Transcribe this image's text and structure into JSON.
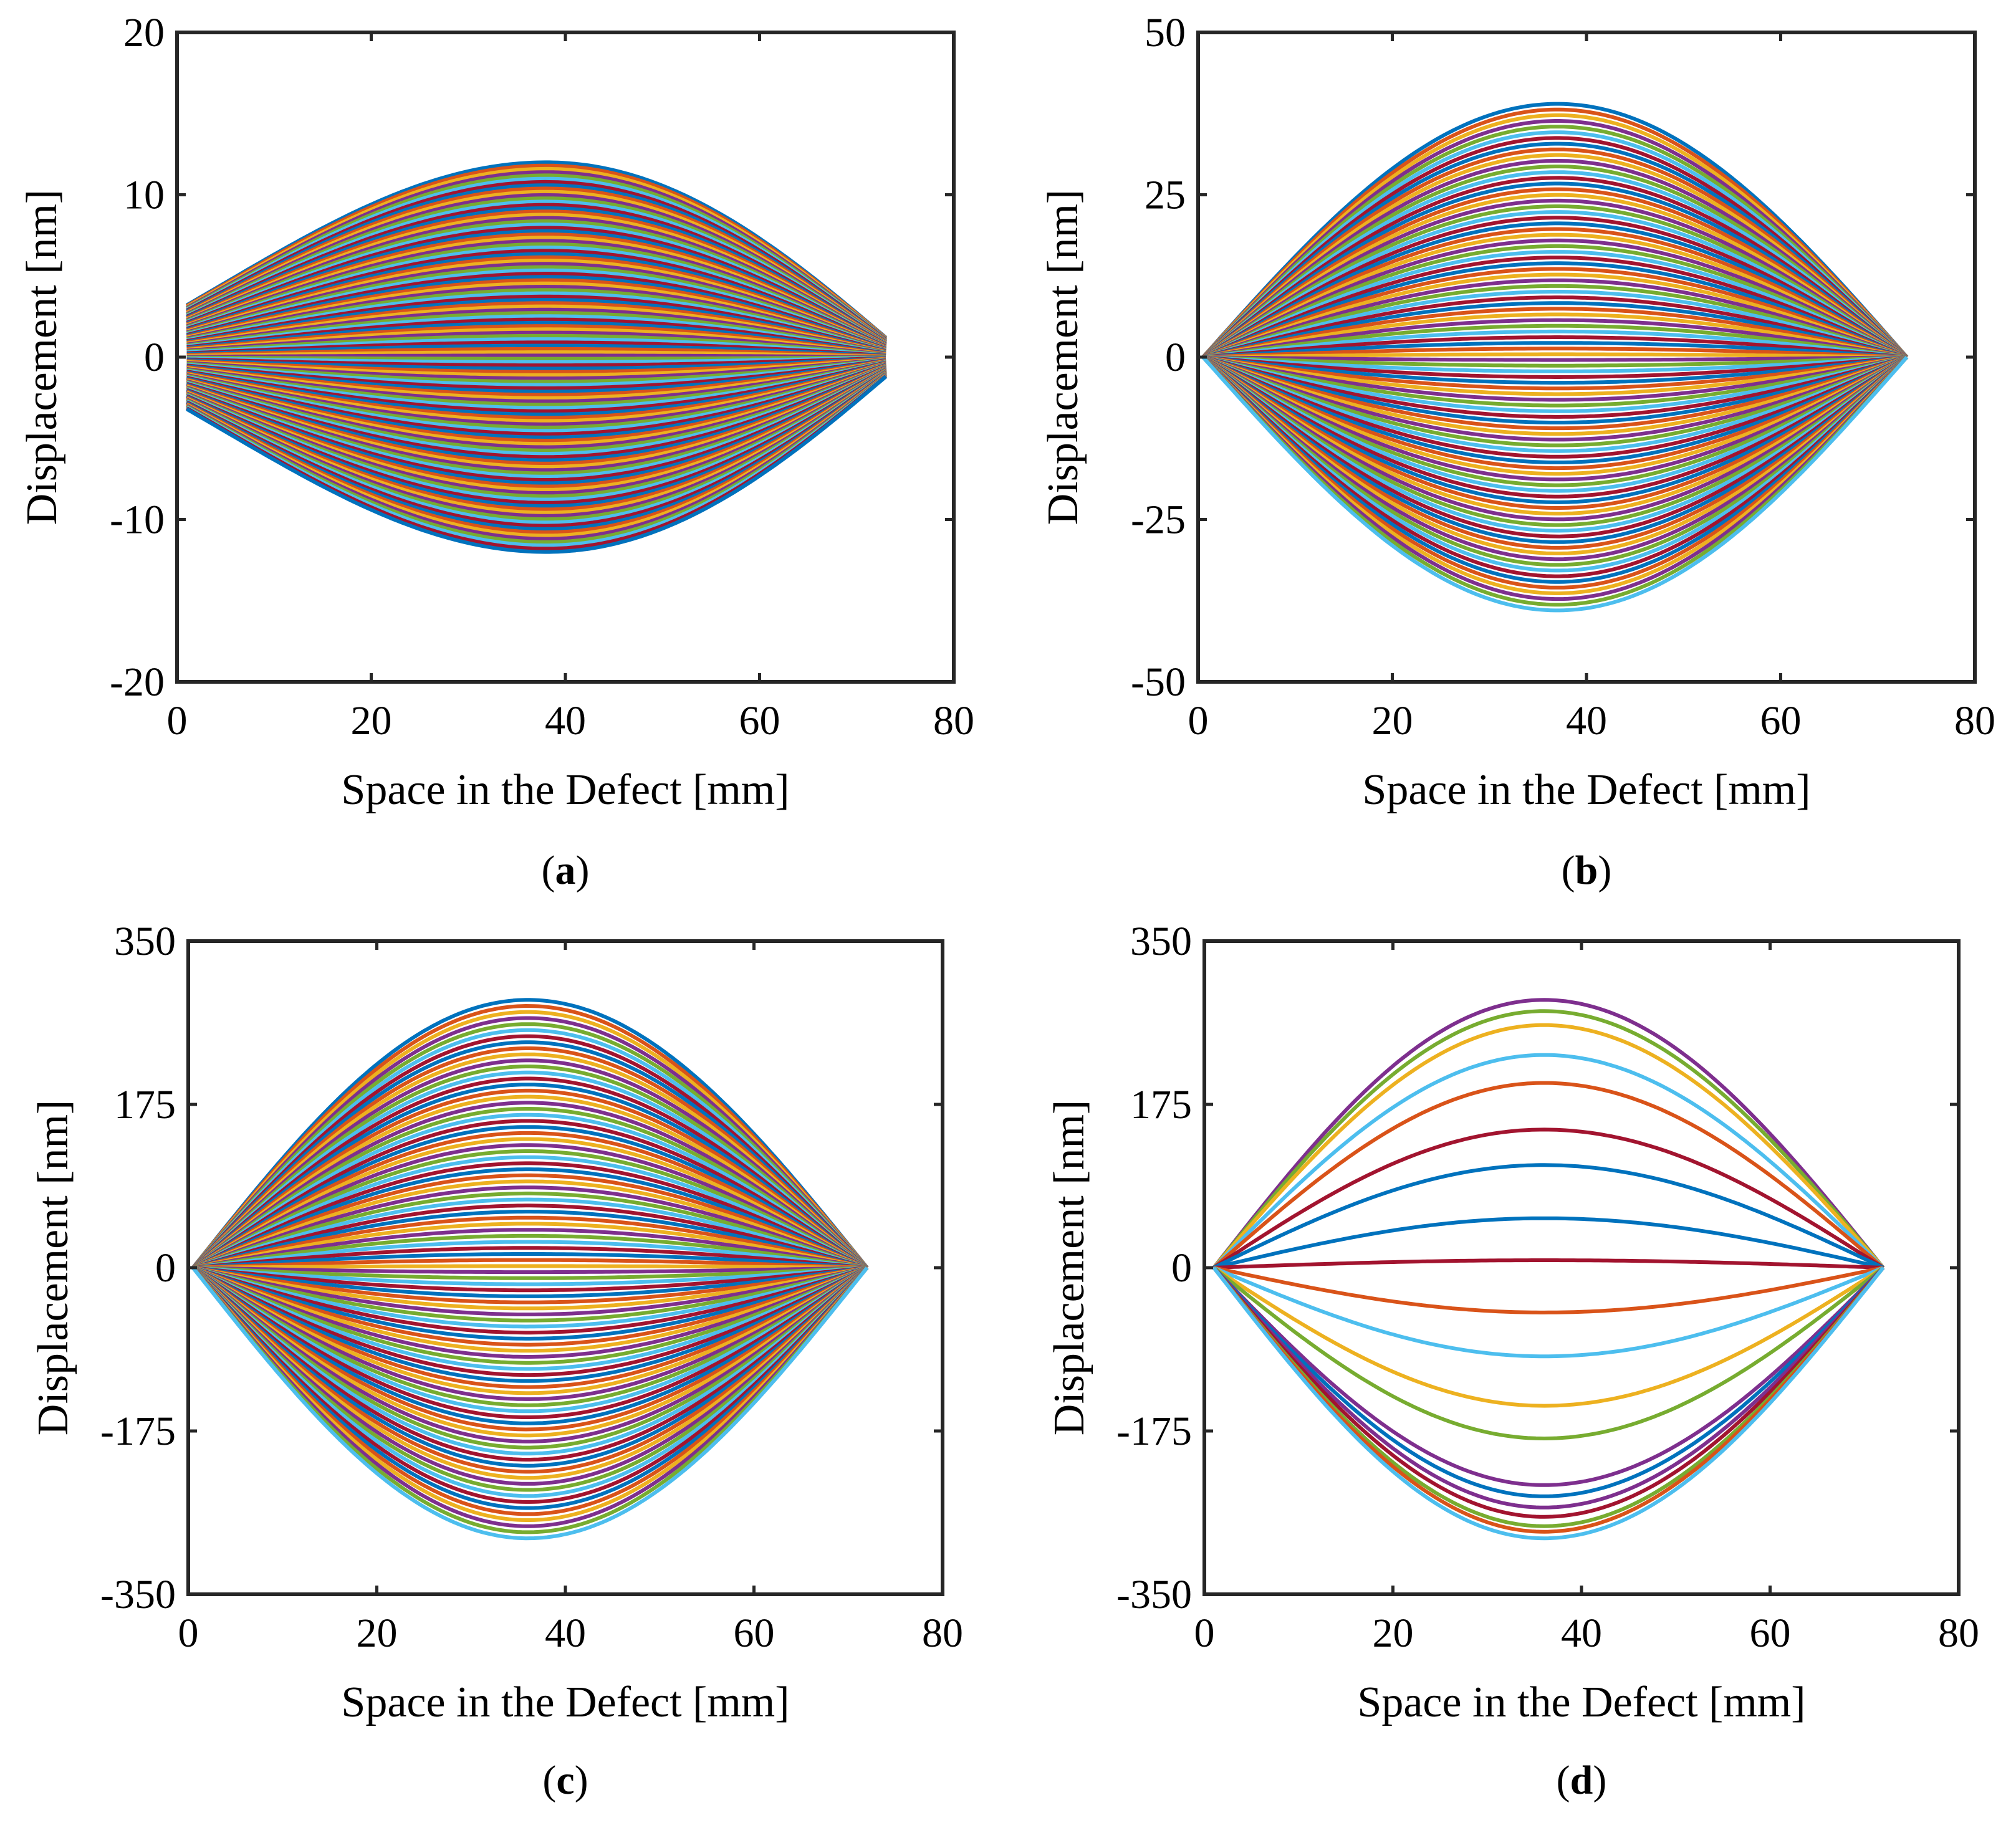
{
  "figure": {
    "panels": [
      "(a)",
      "(b)",
      "(c)",
      "(d)"
    ]
  },
  "chart_data": [
    {
      "id": "a",
      "panel_label": "(a)",
      "type": "line",
      "title": "",
      "xlabel": "Space in the Defect [mm]",
      "ylabel": "Displacement [nm]",
      "xlim": [
        0,
        80
      ],
      "ylim": [
        -20,
        20
      ],
      "xticks": [
        0,
        20,
        40,
        60,
        80
      ],
      "yticks": [
        -20,
        -10,
        0,
        10,
        20
      ],
      "xtick_labels": [
        "0",
        "20",
        "40",
        "60",
        "80"
      ],
      "ytick_labels": [
        "-20",
        "-10",
        "0",
        "10",
        "20"
      ],
      "grid": false,
      "curve_family": {
        "count": 120,
        "x_start": 1,
        "x_end": 73,
        "peak_x": 38,
        "amplitude_max": 12,
        "amplitude_min": -12,
        "left_end_offset": 3.2,
        "right_end_offset": 1.2
      },
      "colors": [
        "#0072BD",
        "#D95319",
        "#EDB120",
        "#7E2F8E",
        "#77AC30",
        "#4DBEEE",
        "#A2142F"
      ]
    },
    {
      "id": "b",
      "panel_label": "(b)",
      "type": "line",
      "title": "",
      "xlabel": "Space in the Defect [mm]",
      "ylabel": "Displacement [nm]",
      "xlim": [
        0,
        80
      ],
      "ylim": [
        -50,
        50
      ],
      "xticks": [
        0,
        20,
        40,
        60,
        80
      ],
      "yticks": [
        -50,
        -25,
        0,
        25,
        50
      ],
      "xtick_labels": [
        "0",
        "20",
        "40",
        "60",
        "80"
      ],
      "ytick_labels": [
        "-50",
        "-25",
        "0",
        "25",
        "50"
      ],
      "grid": false,
      "curve_family": {
        "count": 90,
        "x_start": 0.5,
        "x_end": 73,
        "peak_x": 37,
        "amplitude_max": 39,
        "amplitude_min": -39,
        "left_end_offset": 0,
        "right_end_offset": 0
      },
      "colors": [
        "#0072BD",
        "#D95319",
        "#EDB120",
        "#7E2F8E",
        "#77AC30",
        "#4DBEEE",
        "#A2142F"
      ]
    },
    {
      "id": "c",
      "panel_label": "(c)",
      "type": "line",
      "title": "",
      "xlabel": "Space in the Defect [mm]",
      "ylabel": "Displacement [nm]",
      "xlim": [
        0,
        80
      ],
      "ylim": [
        -350,
        350
      ],
      "xticks": [
        0,
        20,
        40,
        60,
        80
      ],
      "yticks": [
        -350,
        -175,
        0,
        175,
        350
      ],
      "xtick_labels": [
        "0",
        "20",
        "40",
        "60",
        "80"
      ],
      "ytick_labels": [
        "-350",
        "-175",
        "0",
        "175",
        "350"
      ],
      "grid": false,
      "curve_family": {
        "count": 90,
        "x_start": 0.5,
        "x_end": 72,
        "peak_x": 36,
        "amplitude_max": 287,
        "amplitude_min": -290,
        "left_end_offset": 0,
        "right_end_offset": 0
      },
      "colors": [
        "#0072BD",
        "#D95319",
        "#EDB120",
        "#7E2F8E",
        "#77AC30",
        "#4DBEEE",
        "#A2142F"
      ]
    },
    {
      "id": "d",
      "panel_label": "(d)",
      "type": "line",
      "title": "",
      "xlabel": "Space in the Defect [mm]",
      "ylabel": "Displacement [nm]",
      "xlim": [
        0,
        80
      ],
      "ylim": [
        -350,
        350
      ],
      "xticks": [
        0,
        20,
        40,
        60,
        80
      ],
      "yticks": [
        -350,
        -175,
        0,
        175,
        350
      ],
      "xtick_labels": [
        "0",
        "20",
        "40",
        "60",
        "80"
      ],
      "ytick_labels": [
        "-350",
        "-175",
        "0",
        "175",
        "350"
      ],
      "grid": false,
      "x_start": 1,
      "x_end": 72,
      "peak_x": 36,
      "series": [
        {
          "name": "s1",
          "peak": 287,
          "color": "#7E2F8E"
        },
        {
          "name": "s2",
          "peak": 275,
          "color": "#77AC30"
        },
        {
          "name": "s3",
          "peak": 260,
          "color": "#EDB120"
        },
        {
          "name": "s4",
          "peak": 228,
          "color": "#4DBEEE"
        },
        {
          "name": "s5",
          "peak": 198,
          "color": "#D95319"
        },
        {
          "name": "s6",
          "peak": 148,
          "color": "#A2142F"
        },
        {
          "name": "s7",
          "peak": 110,
          "color": "#0072BD"
        },
        {
          "name": "s8",
          "peak": 53,
          "color": "#0072BD"
        },
        {
          "name": "s9",
          "peak": 8,
          "color": "#A2142F"
        },
        {
          "name": "s10",
          "peak": -48,
          "color": "#D95319"
        },
        {
          "name": "s11",
          "peak": -95,
          "color": "#4DBEEE"
        },
        {
          "name": "s12",
          "peak": -148,
          "color": "#EDB120"
        },
        {
          "name": "s13",
          "peak": -183,
          "color": "#77AC30"
        },
        {
          "name": "s14",
          "peak": -233,
          "color": "#7E2F8E"
        },
        {
          "name": "s15",
          "peak": -245,
          "color": "#0072BD"
        },
        {
          "name": "s16",
          "peak": -257,
          "color": "#7E2F8E"
        },
        {
          "name": "s17",
          "peak": -267,
          "color": "#A2142F"
        },
        {
          "name": "s18",
          "peak": -277,
          "color": "#77AC30"
        },
        {
          "name": "s19",
          "peak": -283,
          "color": "#D95319"
        },
        {
          "name": "s20",
          "peak": -290,
          "color": "#4DBEEE"
        }
      ]
    }
  ]
}
